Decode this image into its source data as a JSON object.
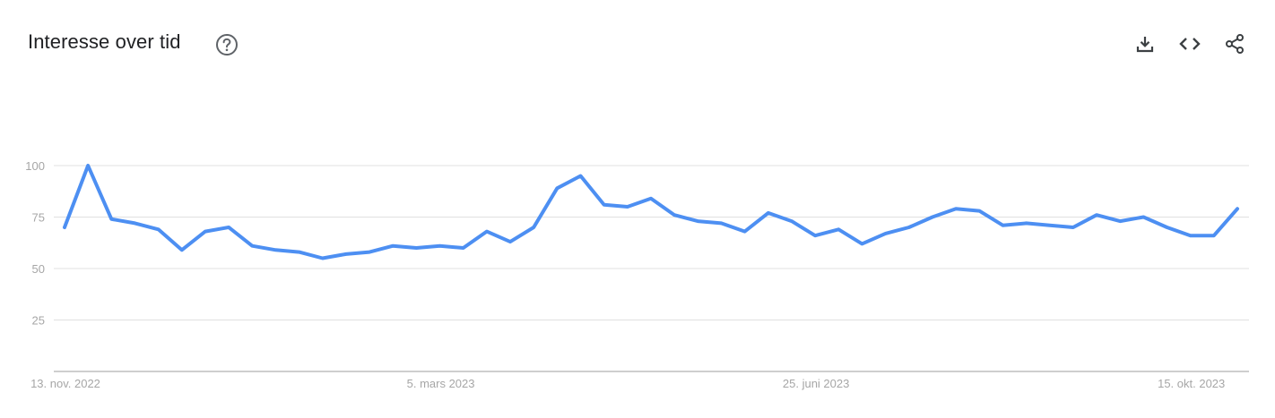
{
  "header": {
    "title": "Interesse over tid"
  },
  "icons": {
    "help": "help-circle-icon",
    "download": "download-icon",
    "embed": "code-embed-icon",
    "share": "share-icon"
  },
  "colors": {
    "series_line": "#4d8ff2",
    "gridline": "#e0e0e0",
    "axis_line": "#9e9e9e",
    "tick_text": "#a6a6a6",
    "icon": "#5f6368"
  },
  "chart_data": {
    "type": "line",
    "title": "Interesse over tid",
    "xlabel": "",
    "ylabel": "",
    "ylim": [
      0,
      100
    ],
    "yticks": [
      25,
      50,
      75,
      100
    ],
    "grid": true,
    "x_tick_labels": [
      {
        "label": "13. nov. 2022",
        "index": 0
      },
      {
        "label": "5. mars 2023",
        "index": 16
      },
      {
        "label": "25. juni 2023",
        "index": 32
      },
      {
        "label": "15. okt. 2023",
        "index": 48
      }
    ],
    "x_start": "2022-11-13",
    "x_interval": "week",
    "series": [
      {
        "values": [
          70,
          100,
          74,
          72,
          69,
          59,
          68,
          70,
          61,
          59,
          58,
          55,
          57,
          58,
          61,
          60,
          61,
          60,
          68,
          63,
          70,
          89,
          95,
          81,
          80,
          84,
          76,
          73,
          72,
          68,
          77,
          73,
          66,
          69,
          62,
          67,
          70,
          75,
          79,
          78,
          71,
          72,
          71,
          70,
          76,
          73,
          75,
          70,
          66,
          66,
          79
        ]
      }
    ]
  }
}
